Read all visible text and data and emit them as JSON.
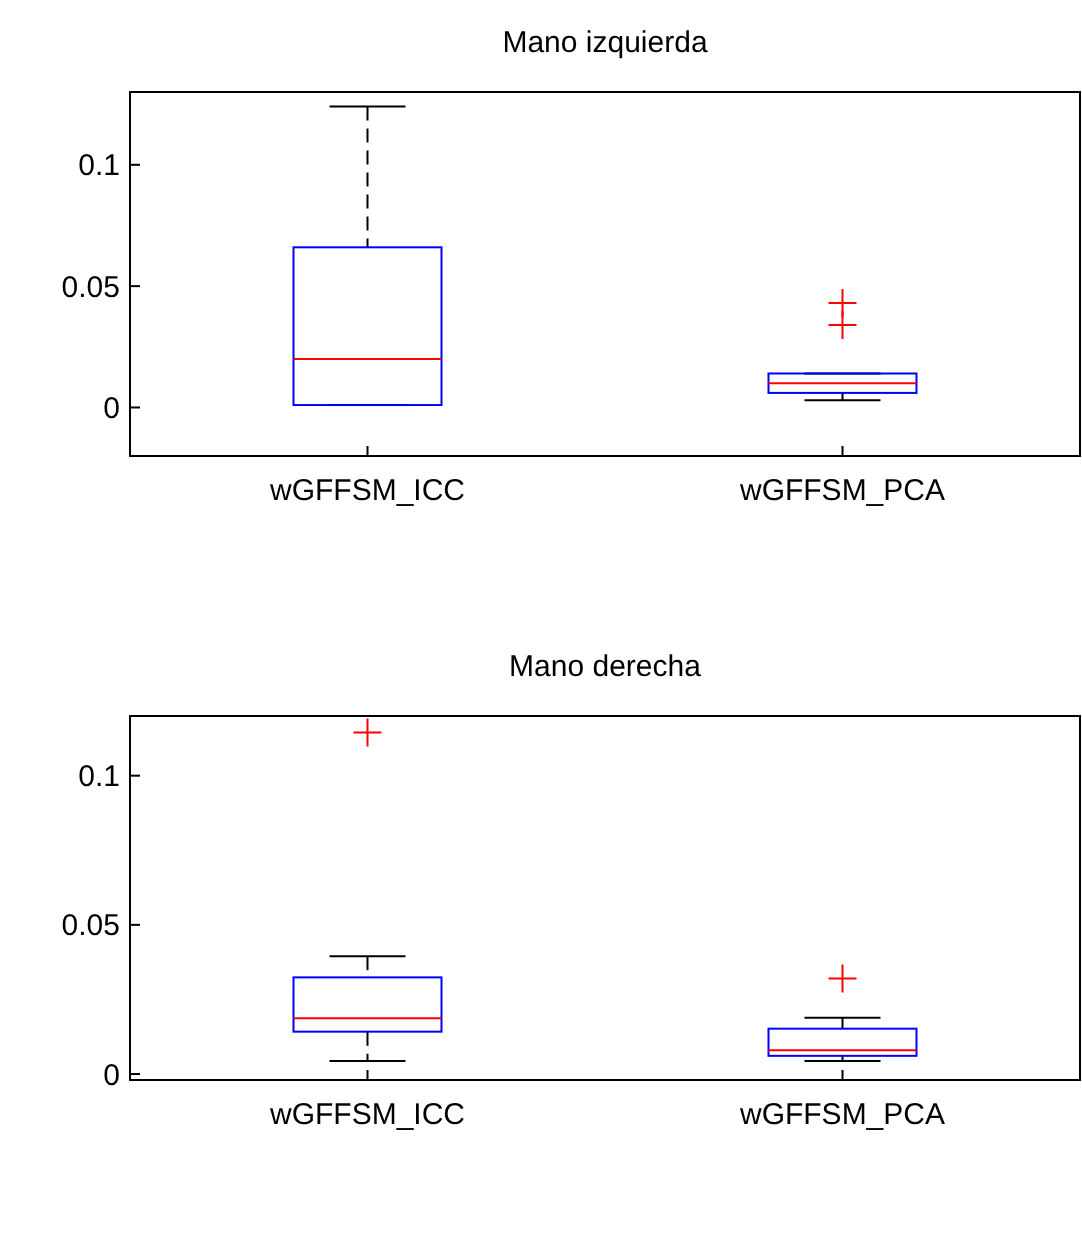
{
  "chart_data": [
    {
      "type": "box",
      "title": "Mano izquierda",
      "categories": [
        "wGFFSM_ICC",
        "wGFFSM_PCA"
      ],
      "ylim": [
        -0.02,
        0.13
      ],
      "yticks": [
        0,
        0.05,
        0.1
      ],
      "grid": false,
      "series": [
        {
          "color": "#0000ff",
          "boxes": [
            {
              "low": 0.001,
              "q1": 0.001,
              "median": 0.02,
              "q3": 0.066,
              "high": 0.124
            },
            {
              "low": 0.003,
              "q1": 0.006,
              "median": 0.01,
              "q3": 0.014,
              "high": 0.014,
              "outliers": [
                0.034,
                0.043
              ]
            }
          ]
        }
      ]
    },
    {
      "type": "box",
      "title": "Mano derecha",
      "categories": [
        "wGFFSM_ICC",
        "wGFFSM_PCA"
      ],
      "ylim": [
        -0.002,
        0.12
      ],
      "yticks": [
        0,
        0.05,
        0.1
      ],
      "grid": false,
      "series": [
        {
          "color": "#0000ff",
          "boxes": [
            {
              "low": 0.0044,
              "q1": 0.0142,
              "median": 0.0187,
              "q3": 0.0324,
              "high": 0.0395,
              "outliers": [
                0.1145
              ]
            },
            {
              "low": 0.0044,
              "q1": 0.0061,
              "median": 0.008,
              "q3": 0.0152,
              "high": 0.0189,
              "outliers": [
                0.032
              ]
            }
          ]
        }
      ]
    }
  ]
}
